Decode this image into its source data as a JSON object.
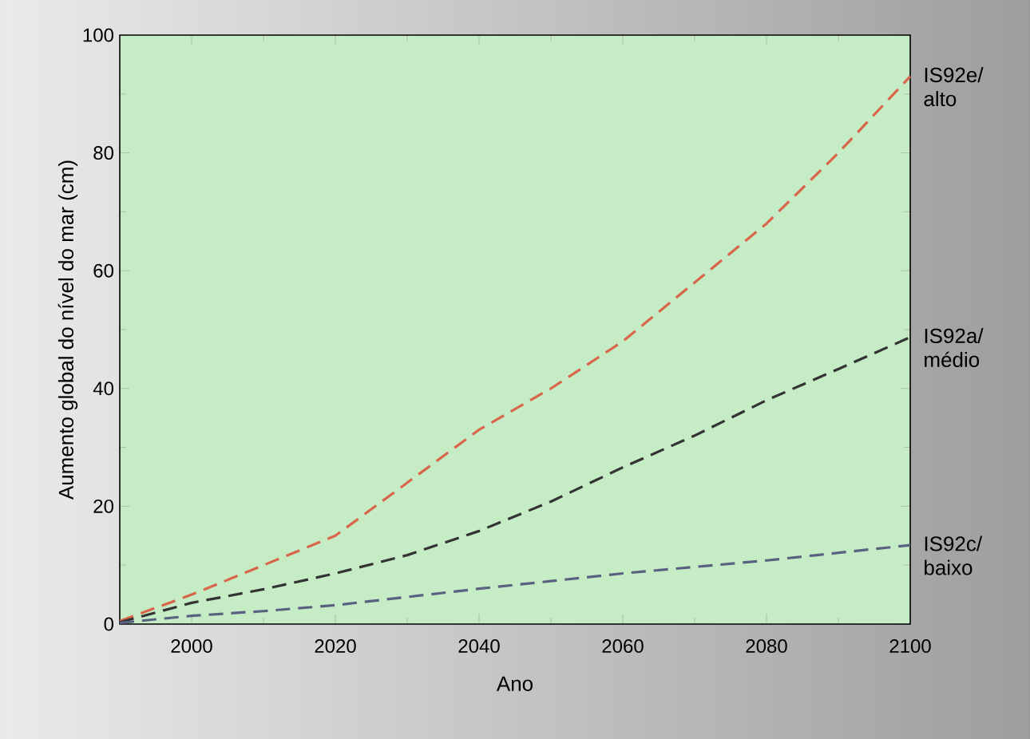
{
  "chart_data": {
    "type": "line",
    "xlabel": "Ano",
    "ylabel": "Aumento global do nível do mar (cm)",
    "x": [
      1990,
      2000,
      2010,
      2020,
      2030,
      2040,
      2050,
      2060,
      2070,
      2080,
      2090,
      2100
    ],
    "series": [
      {
        "name": "IS92e/ alto",
        "color": "#d9664a",
        "values": [
          0.5,
          5,
          10,
          15,
          24,
          33,
          40,
          48,
          58,
          68,
          80,
          93
        ]
      },
      {
        "name": "IS92a/ médio",
        "color": "#333333",
        "values": [
          0.3,
          3.6,
          5.9,
          8.6,
          11.7,
          15.8,
          20.8,
          26.6,
          32,
          38,
          43.3,
          48.7
        ]
      },
      {
        "name": "IS92c/ baixo",
        "color": "#5a6080",
        "values": [
          0.2,
          1.4,
          2.2,
          3.2,
          4.6,
          6,
          7.3,
          8.6,
          9.7,
          10.8,
          12.1,
          13.4
        ]
      }
    ],
    "xlim": [
      1990,
      2100
    ],
    "ylim": [
      0,
      100
    ],
    "xticks": [
      2000,
      2020,
      2040,
      2060,
      2080,
      2100
    ],
    "yticks": [
      0,
      20,
      40,
      60,
      80,
      100
    ],
    "grid": false,
    "legend": false,
    "marker": "none",
    "line_style": "dashed"
  }
}
